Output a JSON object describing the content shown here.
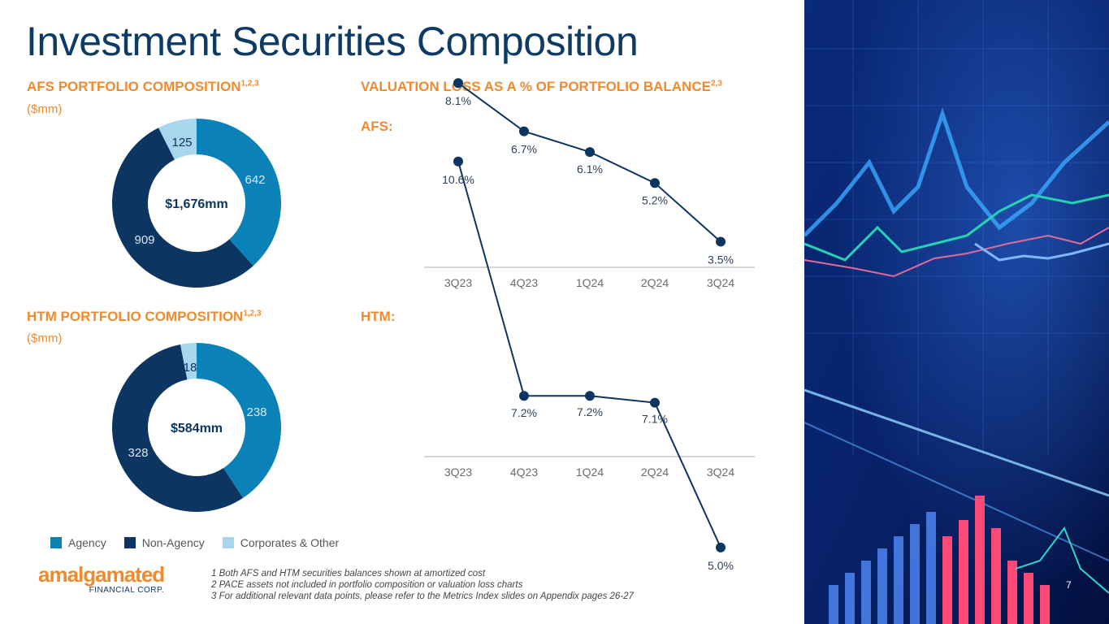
{
  "title": "Investment Securities Composition",
  "afs_pie": {
    "heading": "AFS PORTFOLIO COMPOSITION",
    "heading_sup": "1,2,3",
    "unit": "($mm)"
  },
  "htm_pie": {
    "heading": "HTM PORTFOLIO COMPOSITION",
    "heading_sup": "1,2,3",
    "unit": "($mm)"
  },
  "valuation": {
    "heading": "VALUATION LOSS AS A % OF PORTFOLIO BALANCE",
    "heading_sup": "2,3",
    "afs_label": "AFS:",
    "htm_label": "HTM:"
  },
  "legend": [
    {
      "label": "Agency",
      "color": "#0a82b8"
    },
    {
      "label": "Non-Agency",
      "color": "#0d3561"
    },
    {
      "label": "Corporates & Other",
      "color": "#a8d6ec"
    }
  ],
  "chart_data": [
    {
      "type": "pie",
      "variant": "donut",
      "center_label": "$1,676mm",
      "categories": [
        "Agency",
        "Non-Agency",
        "Corporates & Other"
      ],
      "values": [
        642,
        909,
        125
      ],
      "colors": [
        "#0a82b8",
        "#0d3561",
        "#a8d6ec"
      ]
    },
    {
      "type": "line",
      "x": [
        "3Q23",
        "4Q23",
        "1Q24",
        "2Q24",
        "3Q24"
      ],
      "values": [
        8.1,
        6.7,
        6.1,
        5.2,
        3.5
      ],
      "labels": [
        "8.1%",
        "6.7%",
        "6.1%",
        "5.2%",
        "3.5%"
      ],
      "ylim": [
        0,
        9
      ],
      "color": "#0d3561"
    },
    {
      "type": "pie",
      "variant": "donut",
      "center_label": "$584mm",
      "categories": [
        "Agency",
        "Non-Agency",
        "Corporates & Other"
      ],
      "values": [
        238,
        328,
        18
      ],
      "colors": [
        "#0a82b8",
        "#0d3561",
        "#a8d6ec"
      ]
    },
    {
      "type": "line",
      "x": [
        "3Q23",
        "4Q23",
        "1Q24",
        "2Q24",
        "3Q24"
      ],
      "values": [
        10.6,
        7.2,
        7.2,
        7.1,
        5.0
      ],
      "labels": [
        "10.6%",
        "7.2%",
        "7.2%",
        "7.1%",
        "5.0%"
      ],
      "ylim": [
        0,
        12
      ],
      "color": "#0d3561"
    }
  ],
  "logo": {
    "main": "amalgamated",
    "sub": "FINANCIAL CORP."
  },
  "footnotes": [
    "1 Both AFS and HTM securities balances shown at amortized cost",
    "2 PACE assets not included in portfolio composition or valuation loss charts",
    "3 For additional relevant data points, please refer to the Metrics Index slides on Appendix pages 26-27"
  ],
  "page_number": "7"
}
